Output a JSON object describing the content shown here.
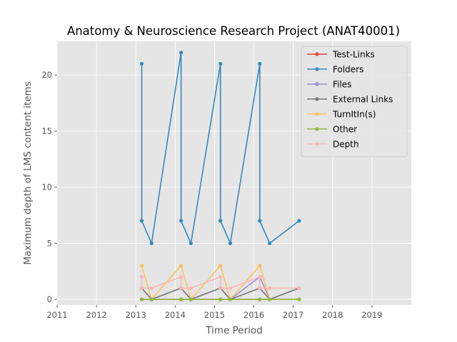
{
  "chart_data": {
    "type": "line",
    "title": "Anatomy & Neuroscience Research Project (ANAT40001)",
    "xlabel": "Time Period",
    "ylabel": "Maximum depth of LMS content items",
    "xlim": [
      2011.0,
      2020.0
    ],
    "ylim": [
      -0.5,
      23.0
    ],
    "x_ticks": [
      2011,
      2012,
      2013,
      2014,
      2015,
      2016,
      2017,
      2018,
      2019
    ],
    "y_ticks": [
      0,
      5,
      10,
      15,
      20
    ],
    "grid": true,
    "legend_position": "top-right",
    "series": [
      {
        "name": "Test-Links",
        "color": "#E24A33",
        "points": [
          [
            2013.15,
            0
          ],
          [
            2013.4,
            0
          ],
          [
            2014.15,
            0
          ],
          [
            2014.4,
            0
          ],
          [
            2015.15,
            0
          ],
          [
            2015.4,
            0
          ],
          [
            2016.15,
            0
          ],
          [
            2016.4,
            0
          ],
          [
            2017.15,
            0
          ]
        ]
      },
      {
        "name": "Folders",
        "color": "#348ABD",
        "points": [
          [
            2013.15,
            21
          ],
          [
            2013.15,
            7
          ],
          [
            2013.4,
            5
          ],
          [
            2014.15,
            22
          ],
          [
            2014.15,
            7
          ],
          [
            2014.4,
            5
          ],
          [
            2015.15,
            21
          ],
          [
            2015.15,
            7
          ],
          [
            2015.4,
            5
          ],
          [
            2016.15,
            21
          ],
          [
            2016.15,
            7
          ],
          [
            2016.4,
            5
          ],
          [
            2017.15,
            7
          ]
        ]
      },
      {
        "name": "Files",
        "color": "#988ED5",
        "points": [
          [
            2013.15,
            1
          ],
          [
            2013.4,
            0
          ],
          [
            2014.15,
            1
          ],
          [
            2014.4,
            0
          ],
          [
            2015.15,
            1
          ],
          [
            2015.4,
            0
          ],
          [
            2016.15,
            2
          ],
          [
            2016.4,
            0
          ],
          [
            2017.15,
            1
          ]
        ]
      },
      {
        "name": "External Links",
        "color": "#777777",
        "points": [
          [
            2013.15,
            1
          ],
          [
            2013.4,
            0
          ],
          [
            2014.15,
            1
          ],
          [
            2014.4,
            0
          ],
          [
            2015.15,
            1
          ],
          [
            2015.4,
            0
          ],
          [
            2016.15,
            1
          ],
          [
            2016.4,
            0
          ],
          [
            2017.15,
            1
          ]
        ]
      },
      {
        "name": "TurnItIn(s)",
        "color": "#FBC15E",
        "points": [
          [
            2013.15,
            3
          ],
          [
            2013.4,
            0
          ],
          [
            2014.15,
            3
          ],
          [
            2014.4,
            0
          ],
          [
            2015.15,
            3
          ],
          [
            2015.4,
            0
          ],
          [
            2016.15,
            3
          ],
          [
            2016.4,
            0
          ],
          [
            2017.15,
            0
          ]
        ]
      },
      {
        "name": "Other",
        "color": "#8EBA42",
        "points": [
          [
            2013.15,
            0
          ],
          [
            2013.4,
            0
          ],
          [
            2014.15,
            0
          ],
          [
            2014.4,
            0
          ],
          [
            2015.15,
            0
          ],
          [
            2015.4,
            0
          ],
          [
            2016.15,
            0
          ],
          [
            2016.4,
            0
          ],
          [
            2017.15,
            0
          ]
        ]
      },
      {
        "name": "Depth",
        "color": "#FFB5B8",
        "points": [
          [
            2013.15,
            2
          ],
          [
            2013.15,
            1
          ],
          [
            2013.4,
            1
          ],
          [
            2014.15,
            2
          ],
          [
            2014.15,
            1
          ],
          [
            2014.4,
            1
          ],
          [
            2015.15,
            2
          ],
          [
            2015.15,
            1
          ],
          [
            2015.4,
            1
          ],
          [
            2016.15,
            2
          ],
          [
            2016.15,
            1
          ],
          [
            2016.4,
            1
          ],
          [
            2017.15,
            1
          ]
        ]
      }
    ]
  }
}
